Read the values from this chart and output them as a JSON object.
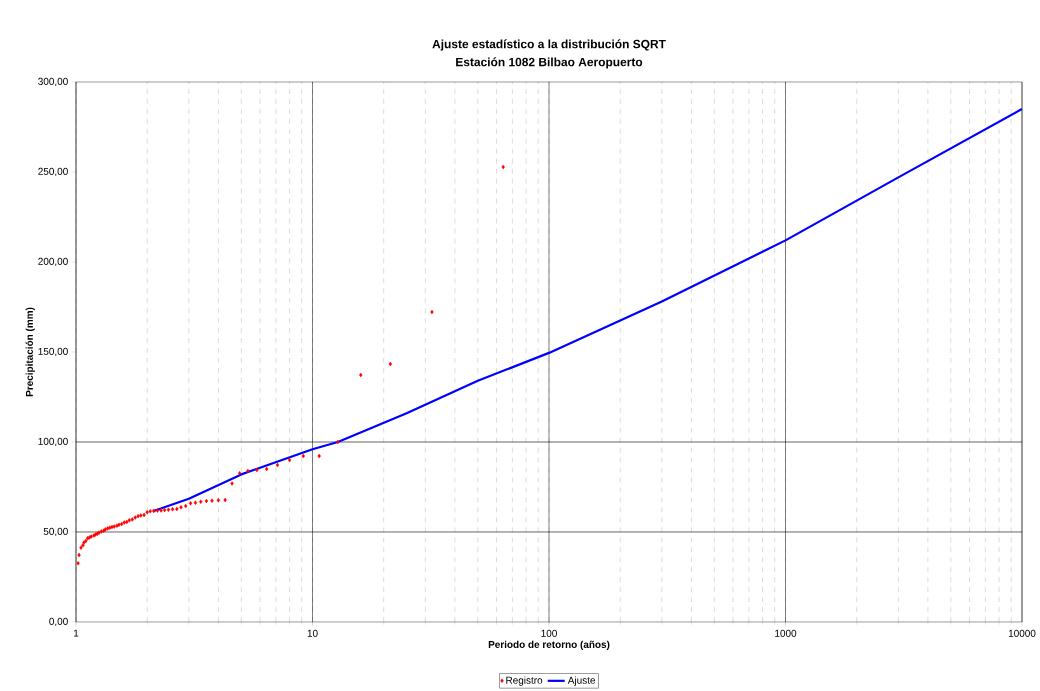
{
  "chart_data": {
    "type": "scatter",
    "title": "Ajuste estadístico a la distribución SQRT",
    "subtitle": "Estación 1082 Bilbao Aeropuerto",
    "xlabel": "Periodo de retorno (años)",
    "ylabel": "Precipitación (mm)",
    "log": "x",
    "xlim": [
      1,
      10000
    ],
    "xticks": [
      1,
      10,
      100,
      1000,
      10000
    ],
    "ylim": [
      0,
      300
    ],
    "yticks": [
      {
        "value": 0,
        "label": "0,00"
      },
      {
        "value": 50,
        "label": "50,00"
      },
      {
        "value": 100,
        "label": "100,00"
      },
      {
        "value": 150,
        "label": "150,00"
      },
      {
        "value": 200,
        "label": "200,00"
      },
      {
        "value": 250,
        "label": "250,00"
      },
      {
        "value": 300,
        "label": "300,00"
      }
    ],
    "grid": "x",
    "legend": "bottom",
    "ref_lines": [
      {
        "axis": "y",
        "value": 50,
        "color": "#000000"
      },
      {
        "axis": "y",
        "value": 100,
        "color": "#000000"
      }
    ],
    "series": [
      {
        "name": "Registro",
        "color": "#ff0000",
        "marker": "diamond",
        "x": [
          64,
          32,
          21.33,
          16,
          12.8,
          10.67,
          9.14,
          8,
          7.11,
          6.4,
          5.82,
          5.33,
          4.92,
          4.57,
          4.27,
          4,
          3.76,
          3.56,
          3.37,
          3.2,
          3.05,
          2.91,
          2.78,
          2.67,
          2.56,
          2.46,
          2.37,
          2.29,
          2.21,
          2.13,
          2.06,
          2,
          1.94,
          1.88,
          1.83,
          1.78,
          1.73,
          1.68,
          1.64,
          1.6,
          1.56,
          1.52,
          1.49,
          1.45,
          1.42,
          1.39,
          1.36,
          1.33,
          1.31,
          1.28,
          1.25,
          1.23,
          1.21,
          1.19,
          1.16,
          1.14,
          1.12,
          1.1,
          1.08,
          1.07,
          1.05,
          1.03,
          1.02
        ],
        "values": [
          252.8,
          172.2,
          143.3,
          137.2,
          100,
          92.2,
          92.2,
          90,
          87.2,
          85,
          84.4,
          83.9,
          82.6,
          77,
          67.8,
          67.6,
          67.4,
          67.2,
          66.8,
          66.3,
          65.9,
          64.4,
          63.7,
          62.8,
          62.6,
          62.4,
          62.2,
          62,
          61.9,
          61.7,
          61.5,
          61,
          59.5,
          59.2,
          58.8,
          58.1,
          57,
          56.5,
          55.6,
          55.3,
          54.5,
          54,
          53.5,
          53,
          52.8,
          52.4,
          52,
          51.4,
          50.7,
          50.3,
          49.6,
          49,
          48.6,
          48,
          47.5,
          47,
          46.5,
          45,
          44.2,
          42.6,
          41.3,
          37.2,
          32.6
        ]
      },
      {
        "name": "Ajuste",
        "type": "line",
        "color": "#0000ff",
        "marker": "none",
        "line_style": "solid",
        "x": [
          2.13,
          3,
          5,
          10,
          12.8,
          25,
          50,
          100,
          300,
          1000,
          3000,
          10000
        ],
        "values": [
          61.7,
          68.5,
          82,
          96,
          100,
          116,
          134,
          149.5,
          178,
          212,
          247,
          285
        ]
      }
    ]
  }
}
